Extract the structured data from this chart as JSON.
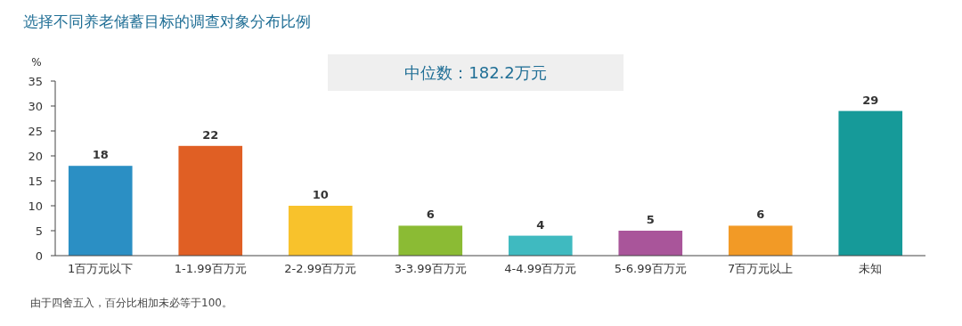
{
  "chart_data": {
    "type": "bar",
    "title": "选择不同养老储蓄目标的调查对象分布比例",
    "ylabel": "%",
    "categories": [
      "1百万元以下",
      "1-1.99百万元",
      "2-2.99百万元",
      "3-3.99百万元",
      "4-4.99百万元",
      "5-6.99百万元",
      "7百万元以上",
      "未知"
    ],
    "values": [
      18,
      22,
      10,
      6,
      4,
      5,
      6,
      29
    ],
    "colors": [
      "#2b8fc4",
      "#e05f24",
      "#f8c22c",
      "#8bbb34",
      "#3fbac0",
      "#a9559a",
      "#f29a26",
      "#169a99"
    ],
    "ylim": [
      0,
      35
    ],
    "yticks": [
      0,
      5,
      10,
      15,
      20,
      25,
      30,
      35
    ],
    "data_labels": true,
    "annotations": [
      "中位数：182.2万元",
      "由于四舍五入，百分比相加未必等于100。"
    ]
  }
}
